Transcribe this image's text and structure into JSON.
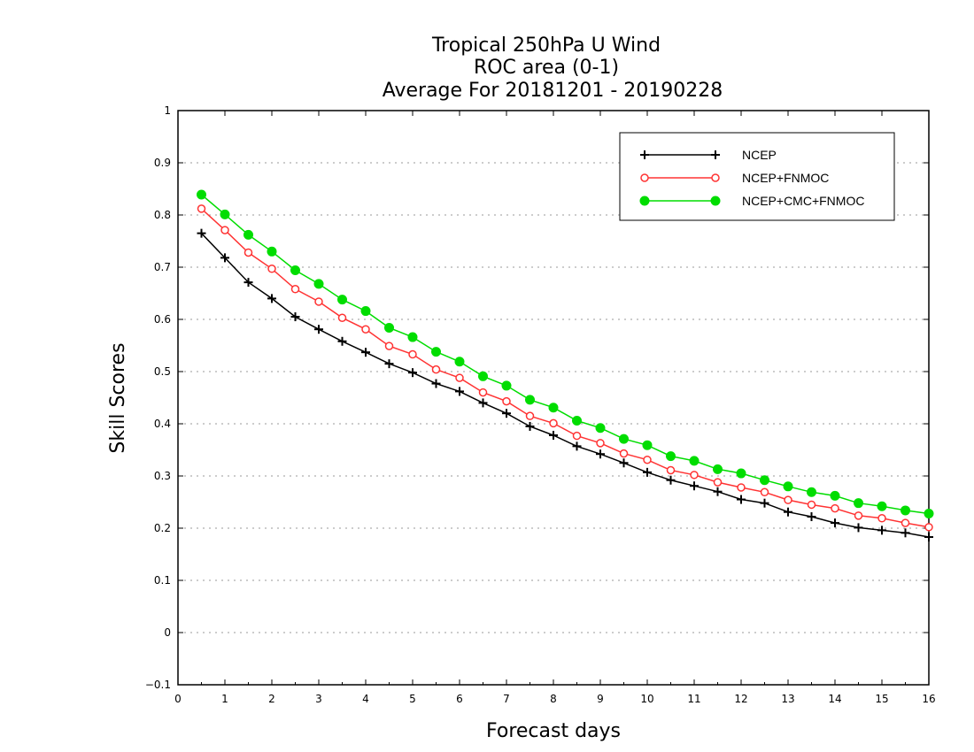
{
  "chart_data": {
    "type": "line",
    "title": [
      "Tropical 250hPa U Wind",
      "ROC area (0-1)",
      "Average For 20181201 - 20190228"
    ],
    "xlabel": "Forecast days",
    "ylabel": "Skill Scores",
    "xlim": [
      0,
      16
    ],
    "ylim": [
      -0.1,
      1
    ],
    "xticks": [
      0,
      1,
      2,
      3,
      4,
      5,
      6,
      7,
      8,
      9,
      10,
      11,
      12,
      13,
      14,
      15,
      16
    ],
    "xtick_labels": [
      "0",
      "1",
      "2",
      "3",
      "4",
      "5",
      "6",
      "7",
      "8",
      "9",
      "10",
      "11",
      "12",
      "13",
      "14",
      "15",
      "16"
    ],
    "yticks": [
      -0.1,
      0,
      0.1,
      0.2,
      0.3,
      0.4,
      0.5,
      0.6,
      0.7,
      0.8,
      0.9,
      1
    ],
    "ytick_labels": [
      "−0.1",
      "0",
      "0.1",
      "0.2",
      "0.3",
      "0.4",
      "0.5",
      "0.6",
      "0.7",
      "0.8",
      "0.9",
      "1"
    ],
    "grid": "y-dotted",
    "legend": "top-right",
    "x": [
      0.5,
      1,
      1.5,
      2,
      2.5,
      3,
      3.5,
      4,
      4.5,
      5,
      5.5,
      6,
      6.5,
      7,
      7.5,
      8,
      8.5,
      9,
      9.5,
      10,
      10.5,
      11,
      11.5,
      12,
      12.5,
      13,
      13.5,
      14,
      14.5,
      15,
      15.5,
      16
    ],
    "series": [
      {
        "name": "NCEP",
        "color": "#000000",
        "marker": "plus",
        "values": [
          0.765,
          0.718,
          0.671,
          0.64,
          0.605,
          0.581,
          0.558,
          0.537,
          0.515,
          0.498,
          0.477,
          0.462,
          0.44,
          0.42,
          0.395,
          0.378,
          0.357,
          0.342,
          0.325,
          0.307,
          0.292,
          0.281,
          0.27,
          0.255,
          0.248,
          0.231,
          0.222,
          0.21,
          0.201,
          0.196,
          0.191,
          0.183
        ]
      },
      {
        "name": "NCEP+FNMOC",
        "color": "#ff3333",
        "marker": "open-circle",
        "values": [
          0.812,
          0.771,
          0.728,
          0.697,
          0.658,
          0.634,
          0.603,
          0.581,
          0.549,
          0.533,
          0.504,
          0.488,
          0.46,
          0.443,
          0.415,
          0.401,
          0.377,
          0.363,
          0.343,
          0.331,
          0.311,
          0.302,
          0.288,
          0.278,
          0.269,
          0.254,
          0.245,
          0.238,
          0.224,
          0.219,
          0.21,
          0.202
        ]
      },
      {
        "name": "NCEP+CMC+FNMOC",
        "color": "#00dd00",
        "marker": "filled-circle",
        "values": [
          0.839,
          0.801,
          0.762,
          0.73,
          0.694,
          0.668,
          0.638,
          0.616,
          0.584,
          0.566,
          0.538,
          0.519,
          0.491,
          0.473,
          0.446,
          0.431,
          0.406,
          0.392,
          0.371,
          0.359,
          0.338,
          0.329,
          0.313,
          0.305,
          0.292,
          0.28,
          0.269,
          0.262,
          0.248,
          0.242,
          0.234,
          0.228
        ]
      }
    ]
  }
}
